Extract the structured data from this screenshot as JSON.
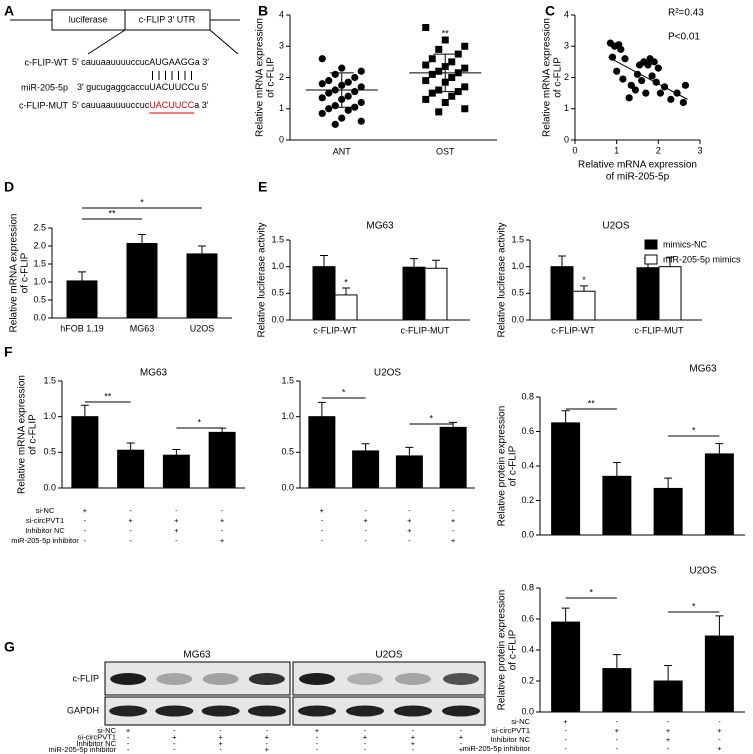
{
  "panels": [
    "A",
    "B",
    "C",
    "D",
    "E",
    "F",
    "G"
  ],
  "diagram": {
    "boxes": [
      "luciferase",
      "c-FLIP 3′ UTR"
    ],
    "highlight_color": "#e00000",
    "rows": [
      {
        "name": "c-FLIP-WT",
        "seq": [
          "5′ cauuaauuuuccuc",
          "AUGAAGG",
          "a 3′"
        ]
      },
      {
        "name": "miR-205-5p",
        "seq": [
          "3′ gucugaggcaccu",
          "UACUUCC",
          "u 5′"
        ]
      },
      {
        "name": "c-FLIP-MUT",
        "seq": [
          "5′ cauuaauuuuccuc",
          "UACUUCC",
          "a 3′"
        ]
      }
    ]
  },
  "conditions": {
    "labels": [
      "si-NC",
      "si-circPVT1",
      "Inhibitor NC",
      "miR-205-5p inhibitor"
    ],
    "signs": [
      [
        "+",
        "-",
        "-",
        "-"
      ],
      [
        "-",
        "+",
        "+",
        "+"
      ],
      [
        "-",
        "-",
        "+",
        "-"
      ],
      [
        "-",
        "-",
        "-",
        "+"
      ]
    ]
  },
  "blot": {
    "groups": [
      "MG63",
      "U2OS"
    ],
    "rows": [
      "c-FLIP",
      "GAPDH"
    ]
  },
  "chart_data": [
    {
      "type": "strip",
      "y_label": [
        "Relative mRNA expression",
        "of c-FLIP"
      ],
      "ylim": [
        0,
        4
      ],
      "yticks": [
        0,
        1,
        2,
        3,
        4
      ],
      "color": "#000000",
      "groups": [
        {
          "name": "ANT",
          "marker": "circle",
          "values": [
            2.6,
            2.3,
            2.2,
            2.1,
            2.0,
            1.9,
            1.85,
            1.8,
            1.75,
            1.7,
            1.6,
            1.55,
            1.5,
            1.4,
            1.35,
            1.3,
            1.2,
            1.1,
            1.05,
            1.0,
            0.95,
            0.85,
            0.7,
            0.6,
            0.5
          ],
          "mean": 1.6,
          "sd": 0.55
        },
        {
          "name": "OST",
          "marker": "square",
          "values": [
            3.6,
            3.2,
            3.0,
            2.9,
            2.75,
            2.6,
            2.5,
            2.4,
            2.35,
            2.3,
            2.2,
            2.15,
            2.1,
            2.0,
            1.9,
            1.85,
            1.7,
            1.6,
            1.55,
            1.5,
            1.4,
            1.3,
            1.2,
            1.0,
            0.9
          ],
          "mean": 2.15,
          "sd": 0.6
        }
      ],
      "annotations": [
        "**"
      ]
    },
    {
      "type": "scatter",
      "color": "#000000",
      "x": [
        0.85,
        0.95,
        1.05,
        1.1,
        0.9,
        1.2,
        1.0,
        1.15,
        1.35,
        1.45,
        1.5,
        1.55,
        1.6,
        1.65,
        1.75,
        1.8,
        1.85,
        1.9,
        1.95,
        2.0,
        2.05,
        2.15,
        2.3,
        2.45,
        2.6,
        2.65,
        1.3,
        1.7
      ],
      "y": [
        3.1,
        3.0,
        3.05,
        2.9,
        2.65,
        2.6,
        2.2,
        1.95,
        1.75,
        1.6,
        2.1,
        2.4,
        1.9,
        2.5,
        2.4,
        2.6,
        2.05,
        2.5,
        1.85,
        2.3,
        1.5,
        1.7,
        1.3,
        1.5,
        1.2,
        1.75,
        1.35,
        1.5
      ],
      "xlim": [
        0,
        3
      ],
      "xticks": [
        0,
        1,
        2,
        3
      ],
      "ylim": [
        0,
        4
      ],
      "yticks": [
        0,
        1,
        2,
        3,
        4
      ],
      "x_label": [
        "Relative mRNA expression",
        "of miR-205-5p"
      ],
      "y_label": [
        "Relative mRNA expression",
        "of c-FLIP"
      ],
      "fit": {
        "x": [
          0.8,
          2.7
        ],
        "y": [
          2.65,
          1.3
        ]
      },
      "annotations": [
        "R²=0.43",
        "P<0.01"
      ]
    },
    {
      "type": "bar",
      "categories": [
        "hFOB 1.19",
        "MG63",
        "U2OS"
      ],
      "values": [
        1.03,
        2.07,
        1.78
      ],
      "errors": [
        0.25,
        0.25,
        0.22
      ],
      "color": "#000000",
      "ylim": [
        0,
        2.5
      ],
      "yticks": [
        {
          "value": 0,
          "label": "0.0"
        },
        0.5,
        {
          "value": 1,
          "label": "1.0"
        },
        1.5,
        {
          "value": 2,
          "label": "2.0"
        },
        2.5
      ],
      "y_label": [
        "Relative mRNA expression",
        "of c-FLIP"
      ],
      "annotations": [
        "**",
        "*"
      ]
    },
    {
      "type": "bar",
      "title": "MG63",
      "categories": [
        "c-FLIP-WT",
        "c-FLIP-MUT"
      ],
      "series": [
        {
          "name": "mimics-NC",
          "color": "#000000",
          "values": [
            1.0,
            0.99
          ],
          "errors": [
            0.21,
            0.16
          ]
        },
        {
          "name": "miR-205-5p mimics",
          "color": "#ffffff",
          "values": [
            0.47,
            0.97
          ],
          "errors": [
            0.13,
            0.15
          ]
        }
      ],
      "ylim": [
        0,
        1.5
      ],
      "yticks": [
        {
          "value": 0,
          "label": "0.0"
        },
        0.5,
        {
          "value": 1,
          "label": "1.0"
        },
        1.5
      ],
      "y_label": [
        "Relative luciferase activity"
      ],
      "annotations": [
        "*"
      ]
    },
    {
      "type": "bar",
      "title": "U2OS",
      "categories": [
        "c-FLIP-WT",
        "c-FLIP-MUT"
      ],
      "legend": "upper right",
      "series": [
        {
          "name": "mimics-NC",
          "color": "#000000",
          "values": [
            1.0,
            0.98
          ],
          "errors": [
            0.2,
            0.17
          ]
        },
        {
          "name": "miR-205-5p mimics",
          "color": "#ffffff",
          "values": [
            0.54,
            1.0
          ],
          "errors": [
            0.1,
            0.18
          ]
        }
      ],
      "ylim": [
        0,
        1.5
      ],
      "yticks": [
        {
          "value": 0,
          "label": "0.0"
        },
        0.5,
        {
          "value": 1,
          "label": "1.0"
        },
        1.5
      ],
      "y_label": [
        "Relative luciferase activity"
      ],
      "annotations": [
        "*"
      ]
    },
    {
      "type": "bar",
      "title": "MG63",
      "values": [
        1.0,
        0.53,
        0.46,
        0.78
      ],
      "errors": [
        0.16,
        0.1,
        0.08,
        0.06
      ],
      "color": "#000000",
      "ylim": [
        0,
        1.5
      ],
      "yticks": [
        {
          "value": 0,
          "label": "0.0"
        },
        0.5,
        {
          "value": 1,
          "label": "1.0"
        },
        1.5
      ],
      "y_label": [
        "Relative mRNA expression",
        "of c-FLIP"
      ],
      "annotations": [
        "**",
        "*"
      ]
    },
    {
      "type": "bar",
      "title": "U2OS",
      "values": [
        1.0,
        0.52,
        0.45,
        0.85
      ],
      "errors": [
        0.2,
        0.1,
        0.12,
        0.07
      ],
      "color": "#000000",
      "ylim": [
        0,
        1.5
      ],
      "yticks": [
        {
          "value": 0,
          "label": "0.0"
        },
        0.5,
        {
          "value": 1,
          "label": "1.0"
        },
        1.5
      ],
      "annotations": [
        "*",
        "*"
      ]
    },
    {
      "type": "bar",
      "title": "MG63",
      "values": [
        0.65,
        0.34,
        0.27,
        0.47
      ],
      "errors": [
        0.07,
        0.08,
        0.06,
        0.06
      ],
      "color": "#000000",
      "ylim": [
        0,
        0.8
      ],
      "yticks": [
        {
          "value": 0,
          "label": "0.0"
        },
        0.2,
        0.4,
        0.6,
        0.8
      ],
      "y_label": [
        "Relative protein expression",
        "of c-FLIP"
      ],
      "annotations": [
        "**",
        "*"
      ]
    },
    {
      "type": "bar",
      "title": "U2OS",
      "values": [
        0.58,
        0.28,
        0.2,
        0.49
      ],
      "errors": [
        0.09,
        0.09,
        0.1,
        0.13
      ],
      "color": "#000000",
      "ylim": [
        0,
        0.8
      ],
      "yticks": [
        {
          "value": 0,
          "label": "0.0"
        },
        0.2,
        0.4,
        0.6,
        0.8
      ],
      "y_label": [
        "Relative protein expression",
        "of c-FLIP"
      ],
      "annotations": [
        "*",
        "*"
      ]
    }
  ]
}
